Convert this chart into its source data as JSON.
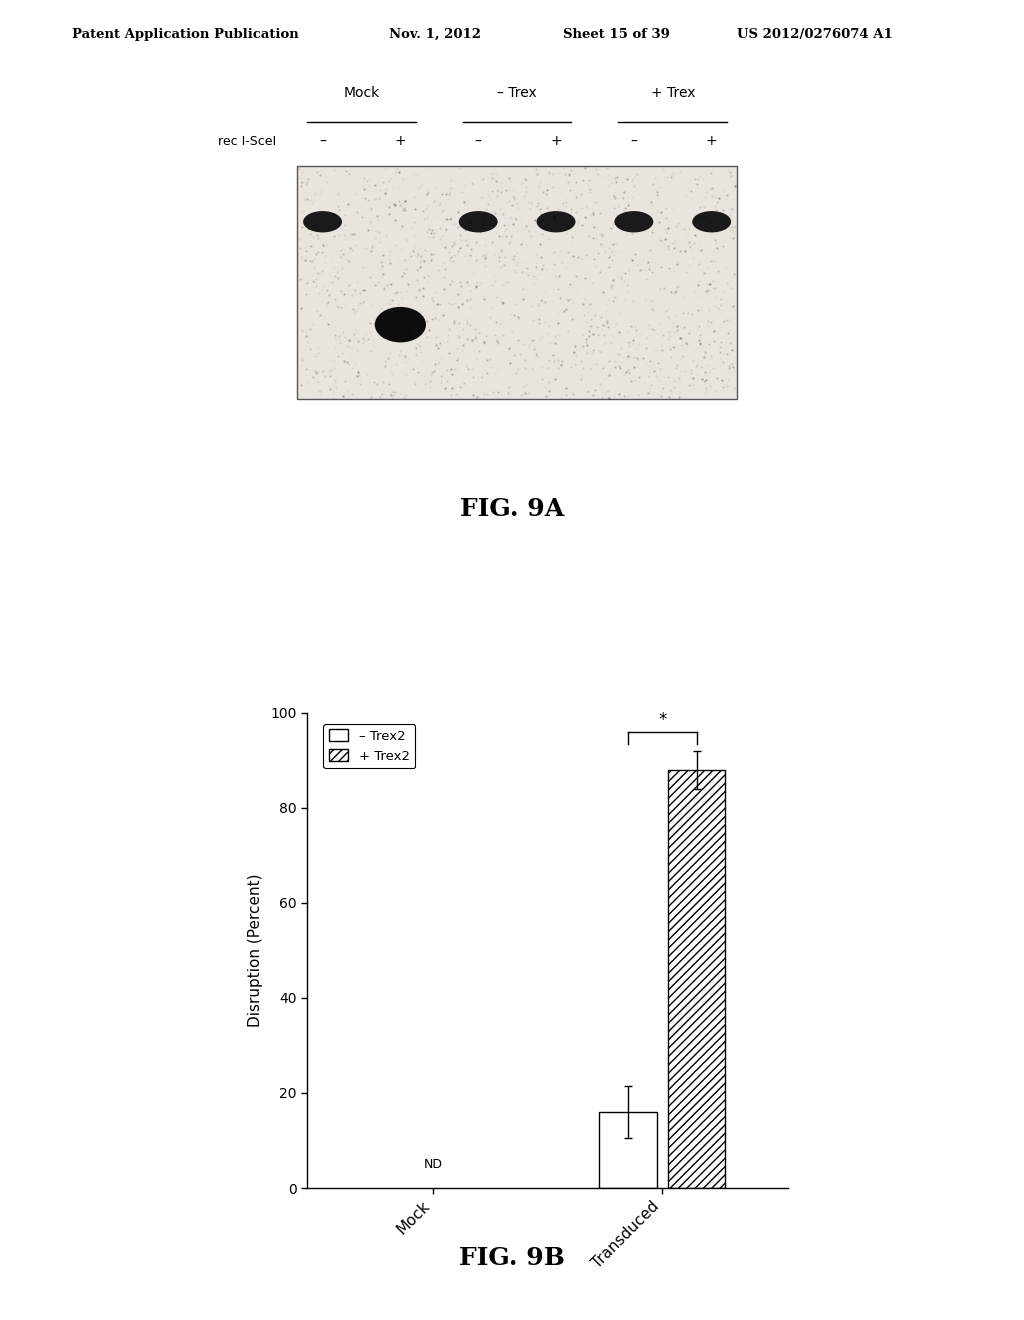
{
  "header_text": "Patent Application Publication",
  "header_date": "Nov. 1, 2012",
  "header_sheet": "Sheet 15 of 39",
  "header_patent": "US 2012/0276074 A1",
  "fig9a_label": "FIG. 9A",
  "fig9b_label": "FIG. 9B",
  "gel_labels_top": [
    "Mock",
    "– Trex",
    "+ Trex"
  ],
  "gel_label_left": "rec I-SceI",
  "gel_signs": [
    "–",
    "+",
    "–",
    "+",
    "–",
    "+"
  ],
  "bar_categories": [
    "Mock",
    "Transduced"
  ],
  "bar_minus_trex2": [
    0,
    16.0
  ],
  "bar_plus_trex2": [
    0,
    88.0
  ],
  "bar_minus_err": [
    0,
    5.5
  ],
  "bar_plus_err": [
    0,
    4.0
  ],
  "ylabel": "Disruption (Percent)",
  "ylim": [
    0,
    100
  ],
  "yticks": [
    0,
    20,
    40,
    60,
    80,
    100
  ],
  "nd_text": "ND",
  "legend_minus": "– Trex2",
  "legend_plus": "+ Trex2",
  "significance_star": "*",
  "bar_width": 0.25,
  "bar_gap": 0.05
}
